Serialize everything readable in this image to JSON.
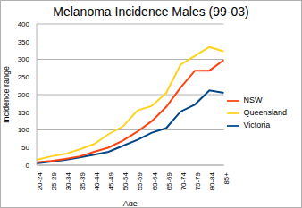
{
  "chart_data": {
    "type": "line",
    "title": "Melanoma Incidence Males (99-03)",
    "x_label": "Age",
    "y_label": "Incidence range",
    "categories": [
      "20-24",
      "25-29",
      "30-34",
      "35-39",
      "40-44",
      "45-49",
      "50-54",
      "55-59",
      "60-64",
      "65-69",
      "70-74",
      "75-79",
      "80-84",
      "85+"
    ],
    "series": [
      {
        "name": "Victoria",
        "color": "#004586",
        "values": [
          5,
          10,
          15,
          22,
          30,
          38,
          55,
          72,
          92,
          105,
          152,
          172,
          212,
          205
        ]
      },
      {
        "name": "NSW",
        "color": "#ff420e",
        "values": [
          8,
          12,
          18,
          25,
          38,
          50,
          70,
          95,
          125,
          165,
          220,
          268,
          268,
          298
        ]
      },
      {
        "name": "Queensland",
        "color": "#ffd320",
        "values": [
          15,
          25,
          32,
          45,
          60,
          88,
          110,
          155,
          168,
          205,
          285,
          310,
          335,
          322
        ]
      }
    ],
    "ylim": [
      0,
      400
    ],
    "yticks": [
      0,
      50,
      100,
      150,
      200,
      250,
      300,
      350,
      400
    ],
    "grid": true,
    "legend": "right"
  }
}
